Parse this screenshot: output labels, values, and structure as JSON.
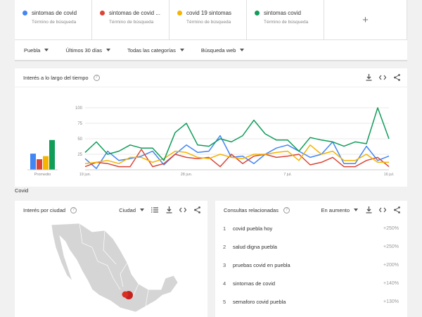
{
  "terms": [
    {
      "name": "sintomas de covid",
      "sub": "Término de búsqueda",
      "color": "#4285f4"
    },
    {
      "name": "sintomas de covid ...",
      "sub": "Término de búsqueda",
      "color": "#db4437"
    },
    {
      "name": "covid 19 sintomas",
      "sub": "Término de búsqueda",
      "color": "#f4b400"
    },
    {
      "name": "sintomas covid",
      "sub": "Término de búsqueda",
      "color": "#0f9d58"
    }
  ],
  "add_label": "+",
  "filters": [
    "Puebla",
    "Últimos 30 días",
    "Todas las categorías",
    "Búsqueda web"
  ],
  "interest": {
    "title": "Interés a lo largo del tiempo",
    "help": "?"
  },
  "covid_label": "Covid",
  "city": {
    "title": "Interés por ciudad",
    "help": "?",
    "dropdown": "Ciudad"
  },
  "related": {
    "title": "Consultas relacionadas",
    "help": "?",
    "dropdown": "En aumento",
    "items": [
      {
        "num": "1",
        "text": "covid puebla hoy",
        "pct": "+250%"
      },
      {
        "num": "2",
        "text": "salud digna puebla",
        "pct": "+250%"
      },
      {
        "num": "3",
        "text": "pruebas covid en puebla",
        "pct": "+200%"
      },
      {
        "num": "4",
        "text": "sintomas de covid",
        "pct": "+140%"
      },
      {
        "num": "5",
        "text": "semaforo covid puebla",
        "pct": "+130%"
      }
    ]
  },
  "chart_data": {
    "type": "line",
    "average_label": "Promedio",
    "yticks": [
      100,
      75,
      50,
      25
    ],
    "ylim": [
      0,
      100
    ],
    "xtick_labels": [
      {
        "index": 0,
        "label": "19 jun."
      },
      {
        "index": 9,
        "label": "28 jun."
      },
      {
        "index": 18,
        "label": "7 jul."
      },
      {
        "index": 27,
        "label": "16 jul."
      }
    ],
    "averages": [
      {
        "color": "#4285f4",
        "value": 26
      },
      {
        "color": "#db4437",
        "value": 17
      },
      {
        "color": "#f4b400",
        "value": 22
      },
      {
        "color": "#0f9d58",
        "value": 48
      }
    ],
    "series": [
      {
        "color": "#4285f4",
        "values": [
          18,
          2,
          30,
          15,
          18,
          22,
          30,
          8,
          25,
          40,
          28,
          30,
          55,
          20,
          22,
          10,
          25,
          35,
          40,
          30,
          20,
          25,
          45,
          10,
          10,
          38,
          15,
          22
        ]
      },
      {
        "color": "#db4437",
        "values": [
          5,
          12,
          10,
          5,
          5,
          33,
          5,
          10,
          25,
          20,
          18,
          20,
          5,
          25,
          10,
          22,
          25,
          20,
          22,
          25,
          8,
          12,
          20,
          5,
          5,
          15,
          20,
          5
        ]
      },
      {
        "color": "#f4b400",
        "values": [
          10,
          12,
          15,
          10,
          20,
          20,
          12,
          18,
          30,
          28,
          20,
          18,
          25,
          20,
          18,
          25,
          25,
          28,
          30,
          15,
          40,
          25,
          30,
          15,
          15,
          25,
          12,
          12
        ]
      },
      {
        "color": "#0f9d58",
        "values": [
          28,
          45,
          25,
          30,
          40,
          35,
          35,
          15,
          60,
          75,
          40,
          38,
          50,
          45,
          55,
          80,
          58,
          48,
          48,
          30,
          52,
          48,
          45,
          38,
          45,
          42,
          100,
          50
        ]
      }
    ]
  }
}
